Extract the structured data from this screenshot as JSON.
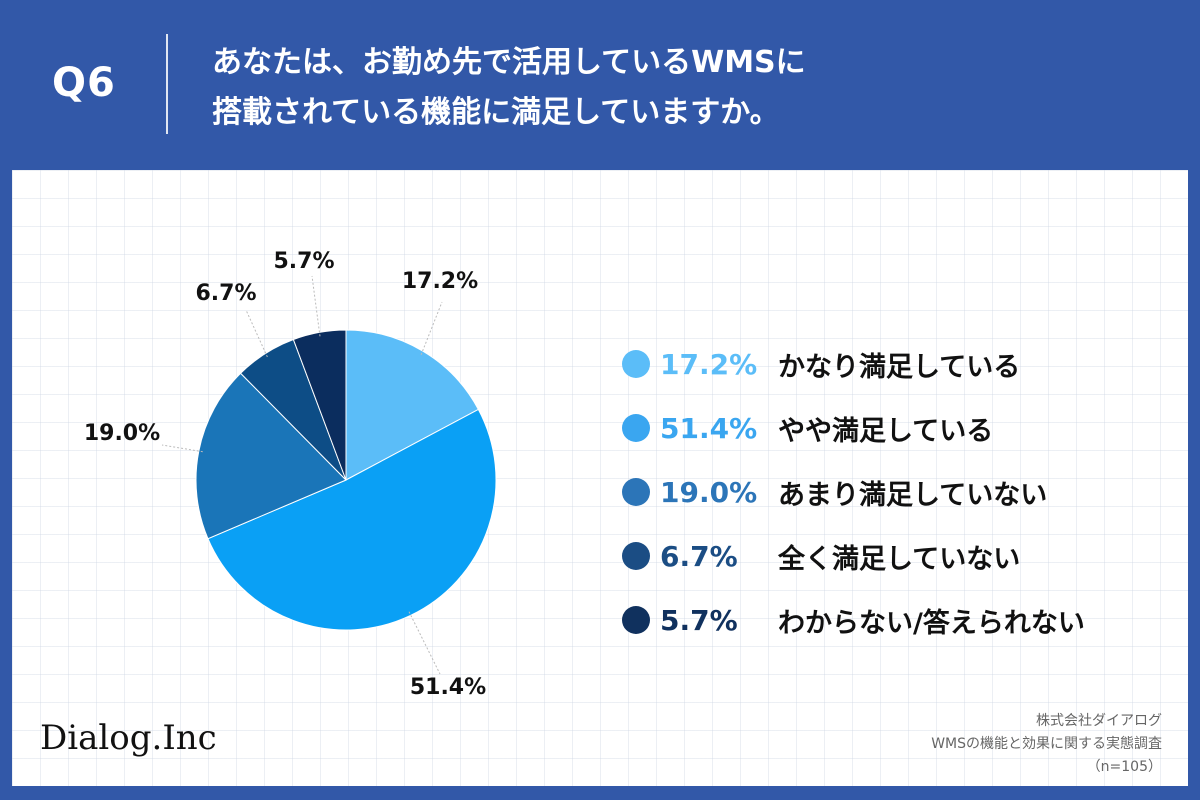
{
  "header": {
    "question_number": "Q6",
    "title_line1": "あなたは、お勤め先で活用しているWMSに",
    "title_line2": "搭載されている機能に満足していますか。"
  },
  "colors": {
    "header_bg": "#3258a8",
    "panel_bg": "#ffffff"
  },
  "chart_data": {
    "type": "pie",
    "title": "",
    "start_angle": "12 o'clock, clockwise",
    "slices": [
      {
        "label": "かなり満足している",
        "value": 17.2,
        "value_label": "17.2%",
        "color": "#5bbdf8"
      },
      {
        "label": "やや満足している",
        "value": 51.4,
        "value_label": "51.4%",
        "color": "#0aa0f5"
      },
      {
        "label": "あまり満足していない",
        "value": 19.0,
        "value_label": "19.0%",
        "color": "#1a75b8"
      },
      {
        "label": "全く満足していない",
        "value": 6.7,
        "value_label": "6.7%",
        "color": "#0d4d86"
      },
      {
        "label": "わからない/答えられない",
        "value": 5.7,
        "value_label": "5.7%",
        "color": "#0b2d5e"
      }
    ]
  },
  "legend": {
    "items": [
      {
        "pct": "17.2%",
        "label": "かなり満足している",
        "color": "#5bbdf8"
      },
      {
        "pct": "51.4%",
        "label": "やや満足している",
        "color": "#3aa6f0"
      },
      {
        "pct": "19.0%",
        "label": "あまり満足していない",
        "color": "#2c75b8"
      },
      {
        "pct": "6.7%",
        "label": "全く満足していない",
        "color": "#1b4d84"
      },
      {
        "pct": "5.7%",
        "label": "わからない/答えられない",
        "color": "#10315e"
      }
    ]
  },
  "footer": {
    "logo": "Dialog.Inc",
    "source_company": "株式会社ダイアログ",
    "source_survey": "WMSの機能と効果に関する実態調査",
    "sample_size": "（n=105）"
  }
}
